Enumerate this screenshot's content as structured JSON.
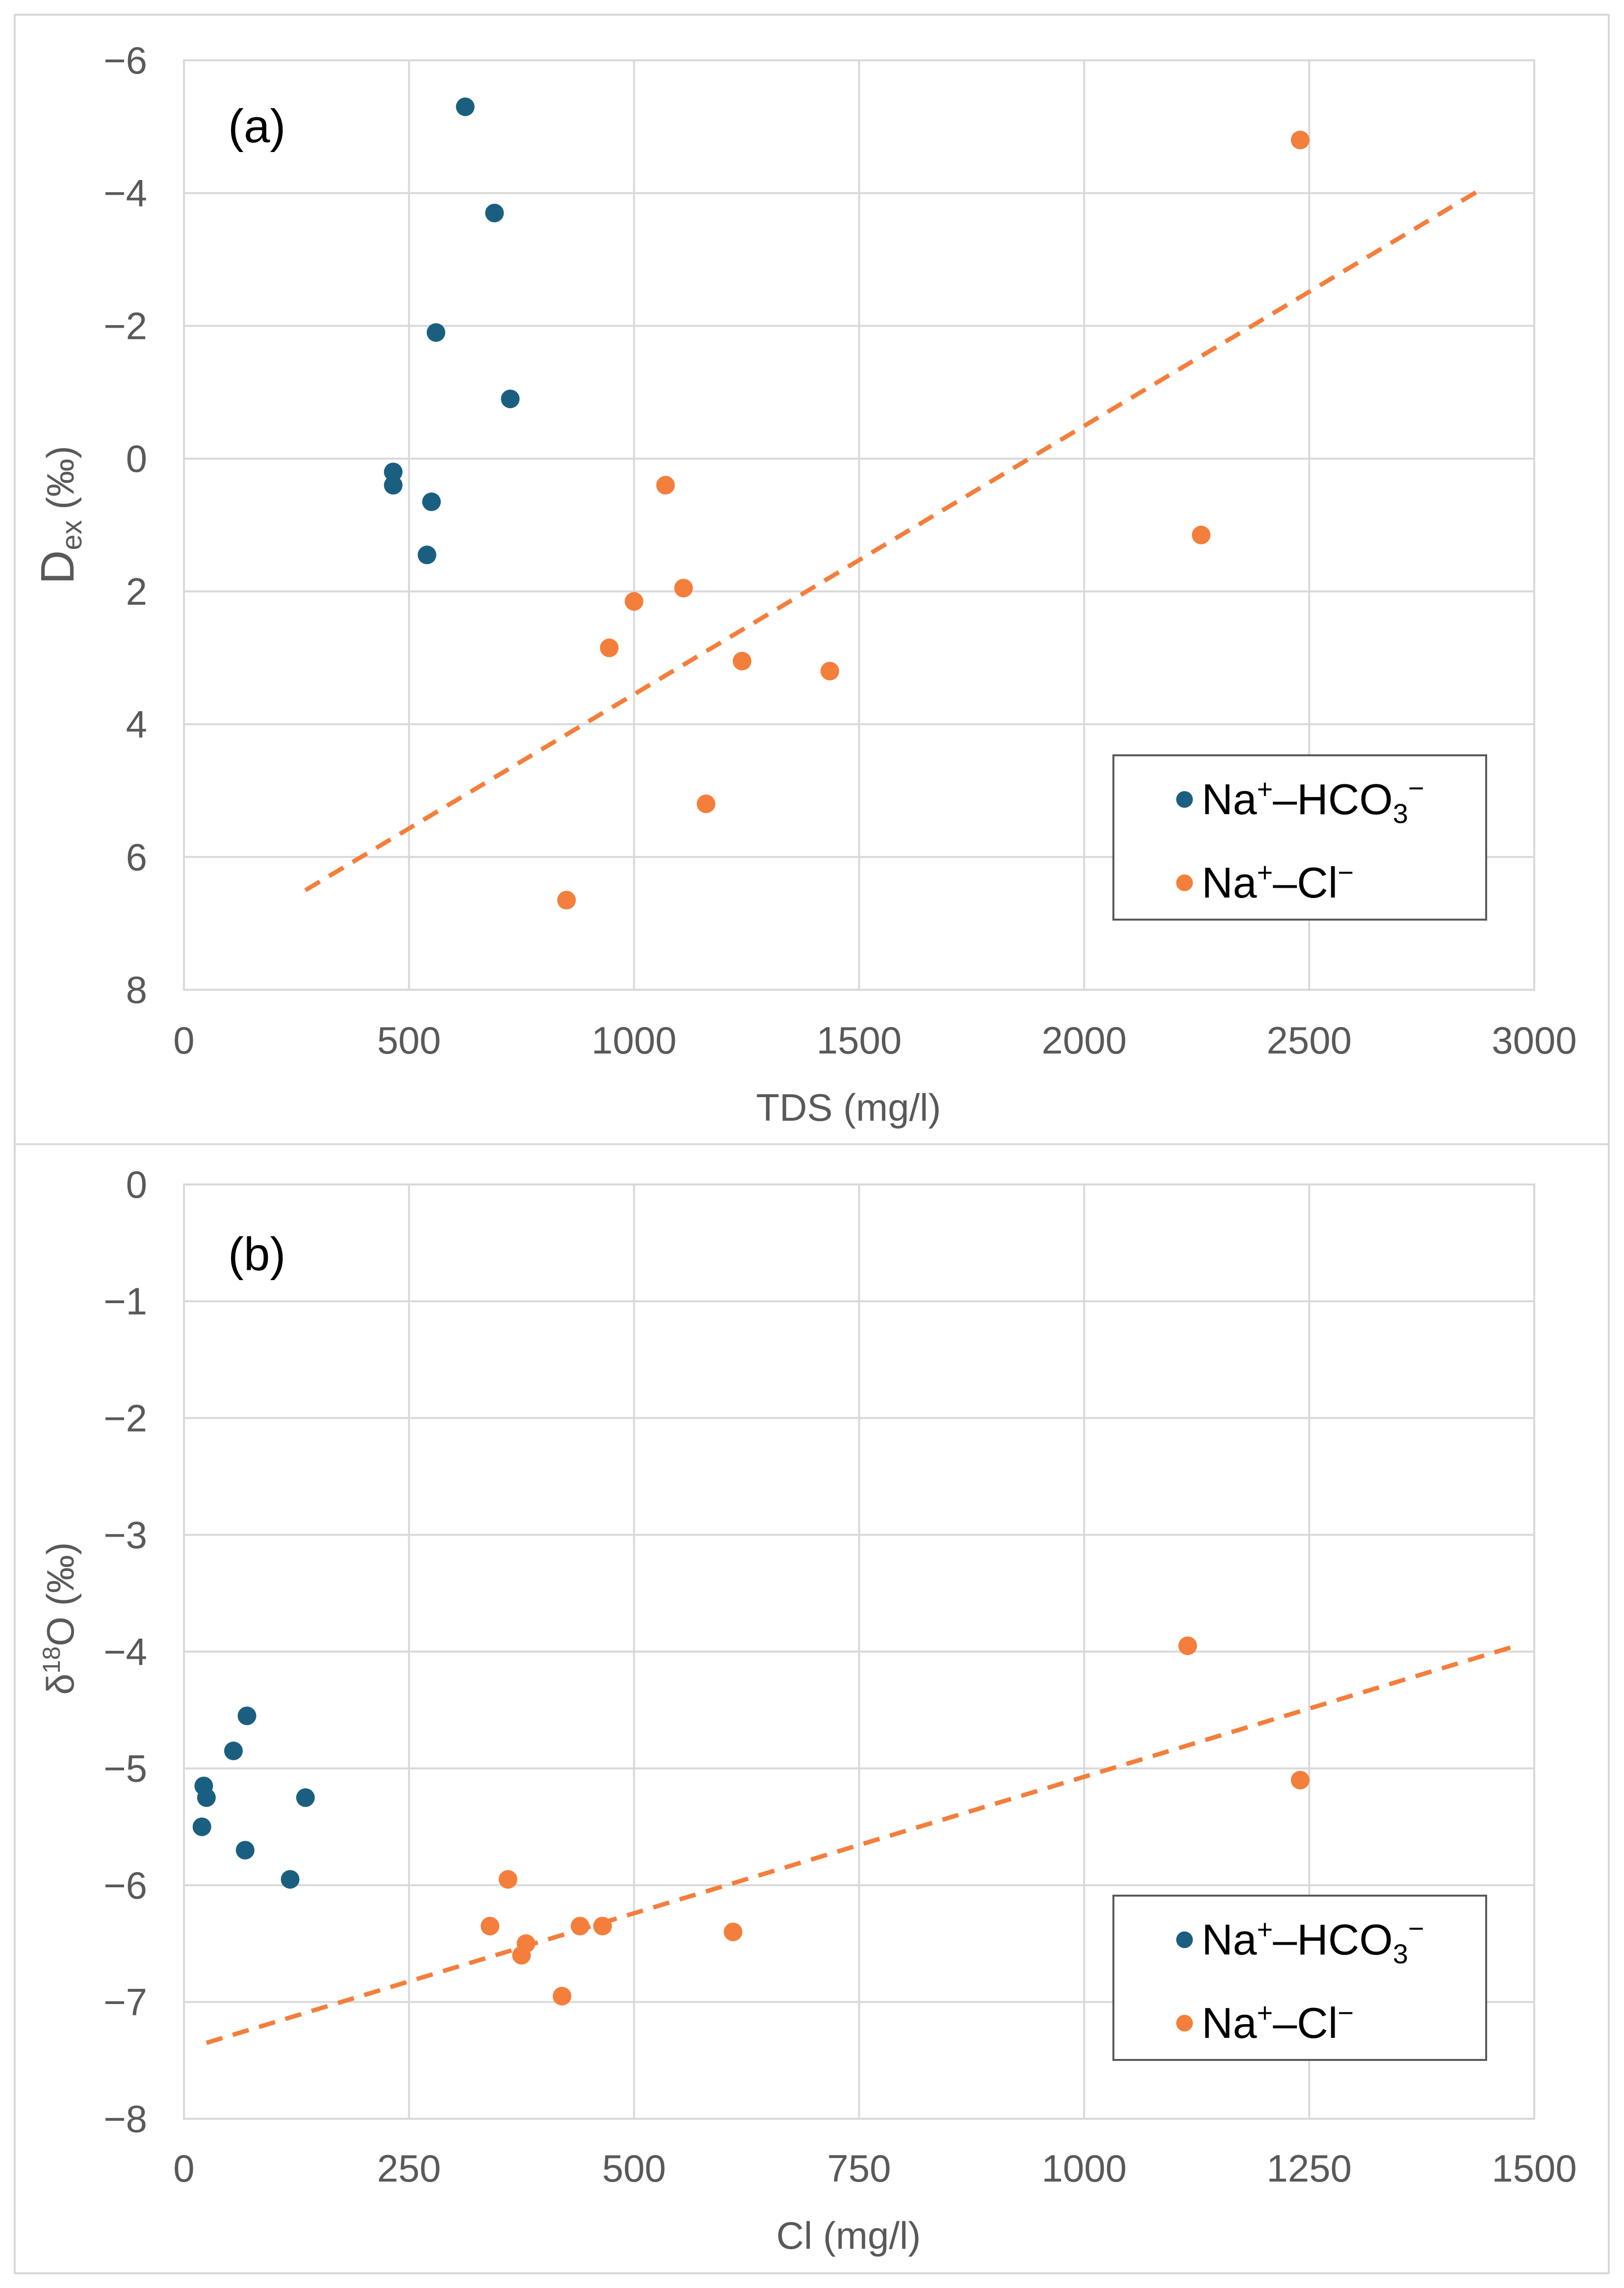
{
  "colors": {
    "hco3_series": "#1b5f80",
    "cl_series": "#f47e3b",
    "grid": "#d9d9d9",
    "axis_text": "#595959"
  },
  "chart_data": [
    {
      "type": "scatter",
      "panel_label": "(a)",
      "title": "",
      "xlabel": "TDS (mg/l)",
      "ylabel_main": "D",
      "ylabel_sub": "ex",
      "ylabel_rest": " (‰)",
      "xlim": [
        0,
        3000
      ],
      "ylim": [
        8,
        -6
      ],
      "y_reversed": true,
      "grid": true,
      "xticks": [
        0,
        500,
        1000,
        1500,
        2000,
        2500,
        3000
      ],
      "xtick_labels": [
        "0",
        "500",
        "1000",
        "1500",
        "2000",
        "2500",
        "3000"
      ],
      "yticks": [
        -6,
        -4,
        -2,
        0,
        2,
        4,
        6,
        8
      ],
      "ytick_labels": [
        "−6",
        "−4",
        "−2",
        "0",
        "2",
        "4",
        "6",
        "8"
      ],
      "legend_position": "bottom-right",
      "series": [
        {
          "name": "Na⁺–HCO₃⁻",
          "legend_main": "Na",
          "legend_sup1": "+",
          "legend_mid": "–HCO",
          "legend_sub": "3",
          "legend_sup2": "−",
          "color": "#1b5f80",
          "x": [
            625,
            690,
            560,
            725,
            465,
            465,
            550,
            540
          ],
          "y": [
            -5.3,
            -3.7,
            -1.9,
            -0.9,
            0.2,
            0.4,
            0.65,
            1.45
          ]
        },
        {
          "name": "Na⁺–Cl⁻",
          "legend_main": "Na",
          "legend_sup1": "+",
          "legend_mid": "–Cl",
          "legend_sup2": "−",
          "color": "#f47e3b",
          "x": [
            2480,
            2260,
            1070,
            1000,
            1110,
            945,
            1240,
            1435,
            1160,
            850
          ],
          "y": [
            -4.8,
            1.15,
            0.4,
            2.15,
            1.95,
            2.85,
            3.05,
            3.2,
            5.2,
            6.65
          ]
        }
      ],
      "trendline": {
        "series": "Na⁺–Cl⁻",
        "x": [
          270,
          2880
        ],
        "y": [
          6.5,
          -4.05
        ]
      }
    },
    {
      "type": "scatter",
      "panel_label": "(b)",
      "title": "",
      "xlabel": "Cl (mg/l)",
      "ylabel_main": "δ",
      "ylabel_sup": "18",
      "ylabel_rest": "O (‰)",
      "xlim": [
        0,
        1500
      ],
      "ylim": [
        -8,
        0
      ],
      "y_reversed": false,
      "grid": true,
      "xticks": [
        0,
        250,
        500,
        750,
        1000,
        1250,
        1500
      ],
      "xtick_labels": [
        "0",
        "250",
        "500",
        "750",
        "1000",
        "1250",
        "1500"
      ],
      "yticks": [
        0,
        -1,
        -2,
        -3,
        -4,
        -5,
        -6,
        -7,
        -8
      ],
      "ytick_labels": [
        "0",
        "−1",
        "−2",
        "−3",
        "−4",
        "−5",
        "−6",
        "−7",
        "−8"
      ],
      "legend_position": "bottom-right",
      "series": [
        {
          "name": "Na⁺–HCO₃⁻",
          "legend_main": "Na",
          "legend_sup1": "+",
          "legend_mid": "–HCO",
          "legend_sub": "3",
          "legend_sup2": "−",
          "color": "#1b5f80",
          "x": [
            70,
            55,
            22,
            25,
            20,
            135,
            68,
            118
          ],
          "y": [
            -4.55,
            -4.85,
            -5.15,
            -5.25,
            -5.5,
            -5.25,
            -5.7,
            -5.95
          ]
        },
        {
          "name": "Na⁺–Cl⁻",
          "legend_main": "Na",
          "legend_sup1": "+",
          "legend_mid": "–Cl",
          "legend_sup2": "−",
          "color": "#f47e3b",
          "x": [
            1115,
            1240,
            360,
            340,
            440,
            465,
            610,
            380,
            375,
            420
          ],
          "y": [
            -3.95,
            -5.1,
            -5.95,
            -6.35,
            -6.35,
            -6.35,
            -6.4,
            -6.5,
            -6.6,
            -6.95
          ]
        }
      ],
      "trendline": {
        "series": "Na⁺–Cl⁻",
        "x": [
          25,
          1480
        ],
        "y": [
          -7.35,
          -3.95
        ]
      }
    }
  ]
}
